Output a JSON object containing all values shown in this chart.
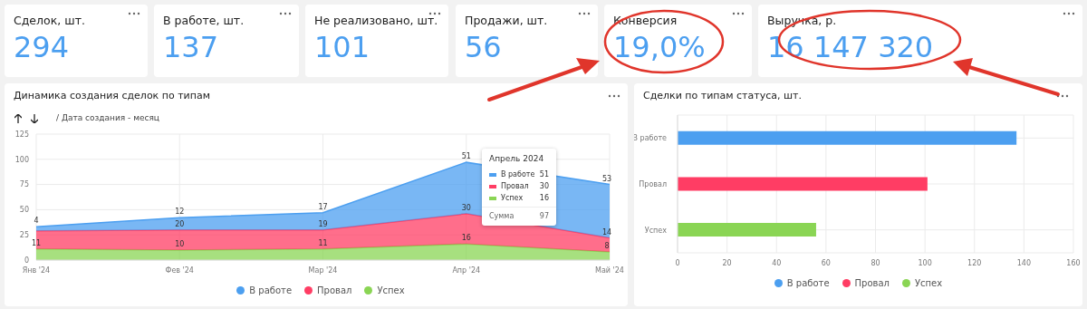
{
  "chart_data": [
    {
      "type": "other",
      "categories": [
        "Сделок, шт.",
        "В работе, шт.",
        "Не реализовано, шт.",
        "Продажи, шт.",
        "Конверсия",
        "Выручка, р."
      ],
      "value_labels": [
        "294",
        "137",
        "101",
        "56",
        "19,0%",
        "16 147 320"
      ]
    },
    {
      "type": "area",
      "stacked": true,
      "title": "Динамика создания сделок по типам",
      "subtitle": "/ Дата создания - месяц",
      "categories": [
        "Янв '24",
        "Фев '24",
        "Мар '24",
        "Апр '24",
        "Май '24"
      ],
      "series": [
        {
          "name": "Успех",
          "color": "#8ad554",
          "values": [
            11,
            10,
            11,
            16,
            8
          ],
          "value_labels": [
            "11",
            "10",
            "11",
            "16",
            "8"
          ]
        },
        {
          "name": "Провал",
          "color": "#ff3d64",
          "values": [
            18,
            20,
            19,
            30,
            14
          ],
          "value_labels": [
            null,
            "20",
            "19",
            "30",
            "14"
          ]
        },
        {
          "name": "В работе",
          "color": "#4c9ff0",
          "values": [
            4,
            12,
            17,
            51,
            53
          ],
          "value_labels": [
            "4",
            "12",
            "17",
            "51",
            "53"
          ]
        }
      ],
      "ylim": [
        0,
        125
      ],
      "yticks": [
        0,
        25,
        50,
        75,
        100,
        125
      ],
      "grid": true,
      "legend": "bottom",
      "annotations": [
        "Апрель 2024",
        "В работе 51",
        "Провал 30",
        "Успех 16",
        "Сумма 97"
      ]
    },
    {
      "type": "bar",
      "orientation": "horizontal",
      "stacked": true,
      "title": "Сделки по типам статуса, шт.",
      "categories": [
        "В работе",
        "Провал",
        "Успех"
      ],
      "series": [
        {
          "name": "В работе",
          "color": "#4c9ff0",
          "values": [
            137,
            null,
            null
          ]
        },
        {
          "name": "Провал",
          "color": "#ff3d64",
          "values": [
            null,
            101,
            null
          ]
        },
        {
          "name": "Успех",
          "color": "#8ad554",
          "values": [
            null,
            null,
            56
          ]
        }
      ],
      "xlim": [
        0,
        160
      ],
      "xticks": [
        0,
        20,
        40,
        60,
        80,
        100,
        120,
        140,
        160
      ],
      "grid": true,
      "legend": "bottom"
    }
  ]
}
